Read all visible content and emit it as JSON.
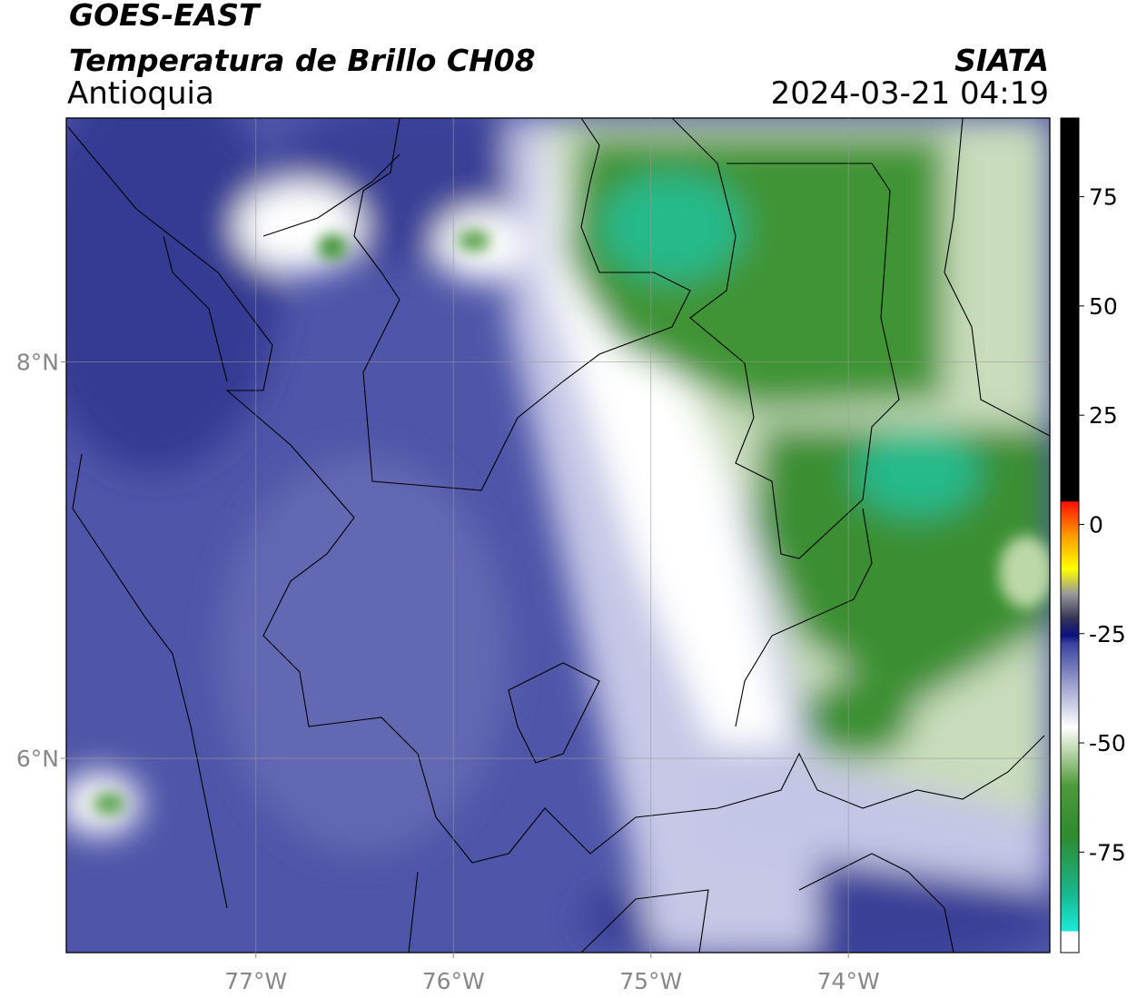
{
  "chart_data": {
    "type": "map",
    "title": "GOES-EAST",
    "subtitle": "Temperatura de Brillo CH08",
    "region": "Antioquia",
    "source": "SIATA",
    "timestamp": "2024-03-21 04:19",
    "xlim": [
      -77.96,
      -72.98
    ],
    "ylim": [
      5.02,
      9.23
    ],
    "xticks": [
      {
        "value": -77,
        "label": "77°W"
      },
      {
        "value": -76,
        "label": "76°W"
      },
      {
        "value": -75,
        "label": "75°W"
      },
      {
        "value": -74,
        "label": "74°W"
      }
    ],
    "yticks": [
      {
        "value": 6,
        "label": "6°N"
      },
      {
        "value": 8,
        "label": "8°N"
      }
    ],
    "grid": true,
    "colorbar": {
      "lim": [
        -98,
        93
      ],
      "ticks": [
        -75,
        -50,
        -25,
        0,
        25,
        50,
        75
      ]
    }
  }
}
